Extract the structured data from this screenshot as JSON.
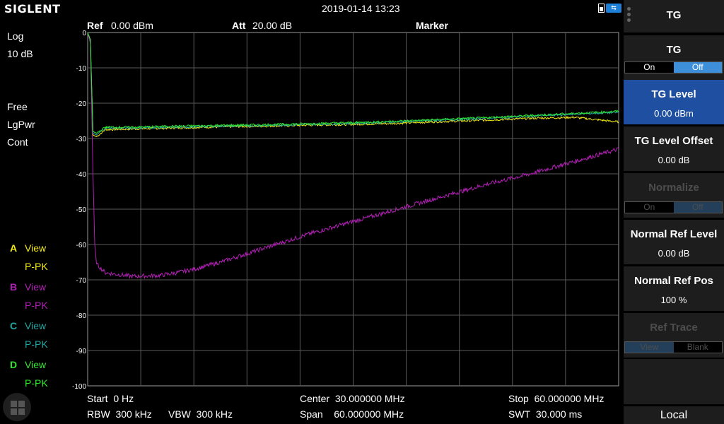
{
  "header": {
    "brand": "SIGLENT",
    "datetime": "2019-01-14 13:23",
    "ref_label": "Ref",
    "ref_value": "0.00 dBm",
    "att_label": "Att",
    "att_value": "20.00 dB",
    "marker_label": "Marker"
  },
  "left": {
    "scale_type": "Log",
    "scale_div": "10 dB",
    "trigger": "Free",
    "avg_type": "LgPwr",
    "sweep_mode": "Cont",
    "traces": [
      {
        "letter": "A",
        "state": "View",
        "detector": "P-PK",
        "color": "#f2ea16"
      },
      {
        "letter": "B",
        "state": "View",
        "detector": "P-PK",
        "color": "#b01fb3"
      },
      {
        "letter": "C",
        "state": "View",
        "detector": "P-PK",
        "color": "#1fa7a2"
      },
      {
        "letter": "D",
        "state": "View",
        "detector": "P-PK",
        "color": "#2fe830"
      }
    ]
  },
  "footer": {
    "start_label": "Start",
    "start_value": "0 Hz",
    "center_label": "Center",
    "center_value": "30.000000 MHz",
    "stop_label": "Stop",
    "stop_value": "60.000000 MHz",
    "rbw_label": "RBW",
    "rbw_value": "300 kHz",
    "vbw_label": "VBW",
    "vbw_value": "300 kHz",
    "span_label": "Span",
    "span_value": "60.000000 MHz",
    "swt_label": "SWT",
    "swt_value": "30.000 ms"
  },
  "menu": {
    "title": "TG",
    "tg": {
      "label": "TG",
      "on": "On",
      "off": "Off",
      "selected": "Off"
    },
    "tg_level": {
      "label": "TG Level",
      "value": "0.00 dBm"
    },
    "tg_level_offset": {
      "label": "TG Level Offset",
      "value": "0.00 dB"
    },
    "normalize": {
      "label": "Normalize",
      "on": "On",
      "off": "Off",
      "selected": "Off"
    },
    "normal_ref_level": {
      "label": "Normal Ref Level",
      "value": "0.00 dB"
    },
    "normal_ref_pos": {
      "label": "Normal Ref Pos",
      "value": "100 %"
    },
    "ref_trace": {
      "label": "Ref Trace",
      "view": "View",
      "blank": "Blank",
      "selected": "View"
    },
    "local": "Local"
  },
  "chart_data": {
    "type": "line",
    "x_unit": "MHz",
    "y_unit": "dBm",
    "xlim": [
      0,
      60
    ],
    "ylim": [
      -100,
      0
    ],
    "yticks": [
      0,
      -10,
      -20,
      -30,
      -40,
      -50,
      -60,
      -70,
      -80,
      -90,
      -100
    ],
    "grid": true,
    "series": [
      {
        "color": "#f2ea16",
        "x": [
          0,
          0.3,
          0.6,
          1,
          2,
          5,
          10,
          15,
          20,
          25,
          30,
          35,
          40,
          45,
          50,
          55,
          58,
          60
        ],
        "y": [
          0,
          -2,
          -29,
          -29.5,
          -27.5,
          -27.3,
          -27,
          -26.7,
          -26.5,
          -26.2,
          -26,
          -25.7,
          -25.2,
          -24.8,
          -24.3,
          -24,
          -24.8,
          -25.3
        ]
      },
      {
        "color": "#b01fb3",
        "x": [
          0,
          0.3,
          0.6,
          0.8,
          1,
          2,
          5,
          8,
          10,
          12,
          15,
          20,
          25,
          30,
          35,
          40,
          45,
          50,
          55,
          60
        ],
        "y": [
          0,
          -3,
          -40,
          -60,
          -65.5,
          -68,
          -69,
          -68.8,
          -68,
          -67,
          -65,
          -61,
          -57,
          -53.5,
          -50,
          -46.5,
          -43,
          -40,
          -36.5,
          -33
        ]
      },
      {
        "color": "#1fa7a2",
        "x": [
          0,
          0.3,
          0.6,
          1,
          2,
          5,
          10,
          15,
          20,
          25,
          30,
          35,
          40,
          45,
          50,
          55,
          60
        ],
        "y": [
          0,
          -2,
          -28.5,
          -29,
          -27,
          -27,
          -26.8,
          -26.5,
          -26.3,
          -26,
          -25.7,
          -25.3,
          -24.8,
          -24.3,
          -23.7,
          -23.1,
          -22.6
        ]
      },
      {
        "color": "#2fe830",
        "x": [
          0,
          0.3,
          0.6,
          1,
          2,
          5,
          10,
          15,
          20,
          25,
          30,
          35,
          40,
          45,
          50,
          55,
          60
        ],
        "y": [
          0,
          -2,
          -28,
          -28.5,
          -26.8,
          -26.8,
          -26.5,
          -26.3,
          -26.1,
          -25.8,
          -25.5,
          -25.1,
          -24.6,
          -24.1,
          -23.5,
          -22.9,
          -22.3
        ]
      }
    ]
  }
}
